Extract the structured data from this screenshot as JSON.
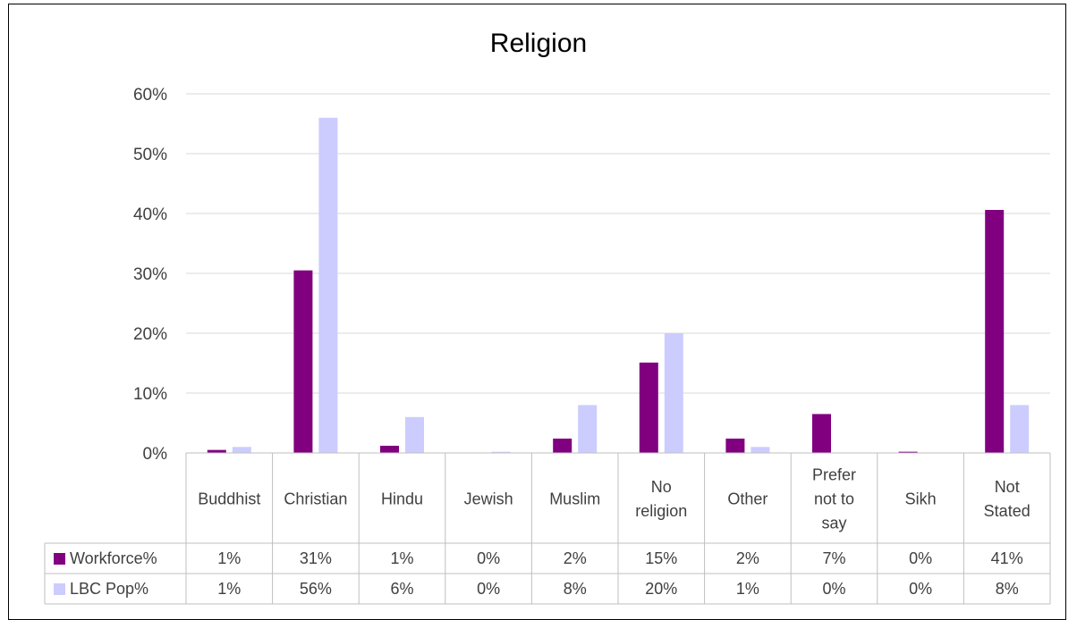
{
  "chart_data": {
    "type": "bar",
    "title": "Religion",
    "categories": [
      "Buddhist",
      "Christian",
      "Hindu",
      "Jewish",
      "Muslim",
      "No religion",
      "Other",
      "Prefer not to say",
      "Sikh",
      "Not Stated"
    ],
    "category_lines": [
      [
        "Buddhist"
      ],
      [
        "Christian"
      ],
      [
        "Hindu"
      ],
      [
        "Jewish"
      ],
      [
        "Muslim"
      ],
      [
        "No",
        "religion"
      ],
      [
        "Other"
      ],
      [
        "Prefer",
        "not to",
        "say"
      ],
      [
        "Sikh"
      ],
      [
        "Not",
        "Stated"
      ]
    ],
    "series": [
      {
        "name": "Workforce%",
        "color": "#800080",
        "values": [
          0.5,
          30.5,
          1.2,
          0.0,
          2.4,
          15.1,
          2.4,
          6.5,
          0.2,
          40.6
        ],
        "table_labels": [
          "1%",
          "31%",
          "1%",
          "0%",
          "2%",
          "15%",
          "2%",
          "7%",
          "0%",
          "41%"
        ]
      },
      {
        "name": "LBC Pop%",
        "color": "#ccccff",
        "values": [
          1.0,
          56.0,
          6.0,
          0.2,
          8.0,
          20.0,
          1.0,
          0.0,
          0.0,
          8.0
        ],
        "table_labels": [
          "1%",
          "56%",
          "6%",
          "0%",
          "8%",
          "20%",
          "1%",
          "0%",
          "0%",
          "8%"
        ]
      }
    ],
    "ylim": [
      0,
      60
    ],
    "yticks": [
      "0%",
      "10%",
      "20%",
      "30%",
      "40%",
      "50%",
      "60%"
    ],
    "grid": true,
    "legend": "data-table"
  }
}
